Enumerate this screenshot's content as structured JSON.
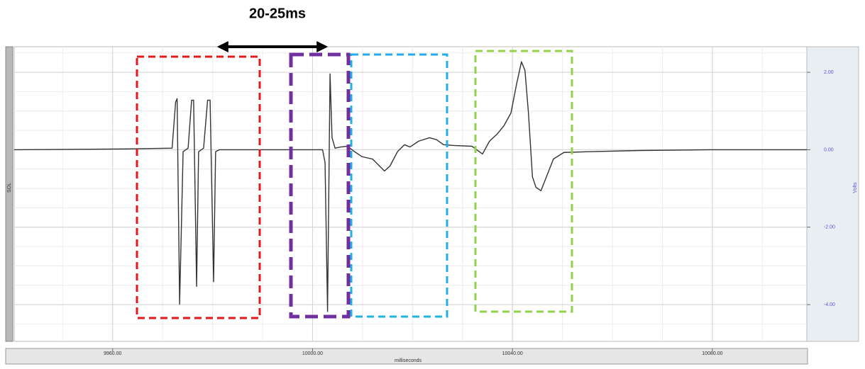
{
  "chart_data": {
    "type": "line",
    "annotation": "20-25ms",
    "ylabel": "Volts",
    "channel_label": "SOL",
    "xlabel": "milliseconds",
    "x": [
      9940.26,
      9962.3,
      9971.9,
      9972.6,
      9972.9,
      9973.4,
      9974.1,
      9975.1,
      9975.8,
      9976.2,
      9976.8,
      9977.2,
      9978.2,
      9979.0,
      9979.5,
      9980.2,
      9980.6,
      9981.4,
      10002.0,
      10002.5,
      10003.0,
      10003.5,
      10003.9,
      10004.5,
      10005.6,
      10007.0,
      10008.4,
      10009.9,
      10012.0,
      10013.4,
      10014.4,
      10015.5,
      10017.0,
      10018.4,
      10019.5,
      10021.2,
      10023.4,
      10024.8,
      10026.2,
      10028.3,
      10031.9,
      10034.0,
      10035.4,
      10036.9,
      10038.3,
      10039.7,
      10040.8,
      10041.8,
      10042.5,
      10043.2,
      10044.0,
      10044.7,
      10045.7,
      10046.8,
      10048.2,
      10050.3,
      10055.3,
      10065.3,
      10079.5,
      10098.9
    ],
    "series": [
      {
        "name": "SOL",
        "color": "#333333",
        "values": [
          0,
          0.02,
          0.04,
          1.23,
          1.32,
          -3.99,
          -0.05,
          0.04,
          1.28,
          1.28,
          -3.53,
          -0.05,
          0.04,
          1.28,
          1.28,
          -3.41,
          -0.05,
          0,
          0,
          -0.33,
          -4.18,
          1.96,
          0.31,
          0.04,
          0.07,
          0.09,
          -0.05,
          -0.18,
          -0.24,
          -0.42,
          -0.55,
          -0.42,
          -0.05,
          0.13,
          0.07,
          0.22,
          0.31,
          0.26,
          0.13,
          0.11,
          0.09,
          -0.11,
          0.22,
          0.4,
          0.62,
          0.95,
          1.68,
          2.27,
          2.05,
          0.95,
          -0.7,
          -0.97,
          -1.06,
          -0.7,
          -0.24,
          -0.07,
          -0.05,
          -0.02,
          0,
          0
        ]
      }
    ],
    "xlim": [
      9940.3,
      10098.9
    ],
    "xticks": [
      {
        "value": 9960,
        "label": "9960.00"
      },
      {
        "value": 10000,
        "label": "10000.00"
      },
      {
        "value": 10040,
        "label": "10040.00"
      },
      {
        "value": 10080,
        "label": "10080.00"
      }
    ],
    "ylim": [
      -4.95,
      2.66
    ],
    "yticks": [
      {
        "value": 2,
        "label": "2.00"
      },
      {
        "value": 0,
        "label": "0.00"
      },
      {
        "value": -2,
        "label": "-2.00"
      },
      {
        "value": -4,
        "label": "-4.00"
      }
    ],
    "grid": true
  }
}
